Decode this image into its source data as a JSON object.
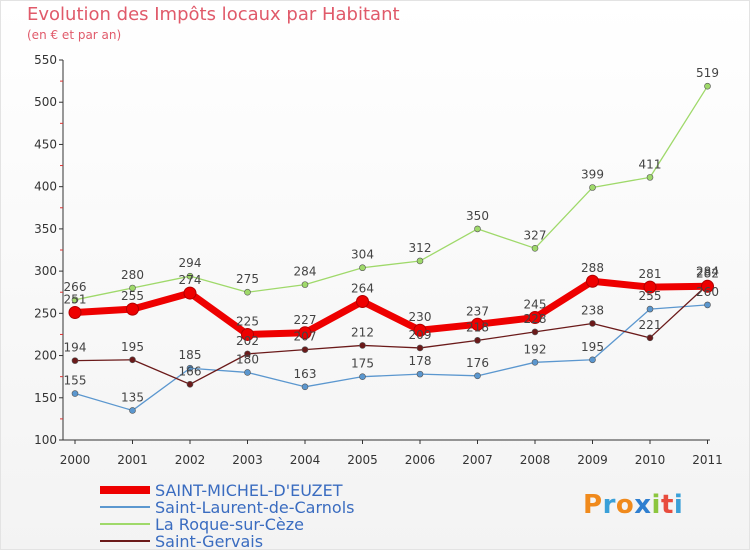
{
  "header": {
    "title": "Evolution des Impôts locaux par Habitant",
    "subtitle": "(en € et par an)"
  },
  "brand": {
    "letters": [
      "P",
      "r",
      "o",
      "x",
      "i",
      "t",
      "i"
    ],
    "colors": [
      "#f08a1c",
      "#3aa0d8",
      "#f08a1c",
      "#2f7fd0",
      "#8cc63e",
      "#e84c3d",
      "#3aa0d8"
    ]
  },
  "chart_data": {
    "type": "line",
    "title": "Evolution des Impôts locaux par Habitant",
    "subtitle": "(en € et par an)",
    "x": [
      "2000",
      "2001",
      "2002",
      "2003",
      "2004",
      "2005",
      "2006",
      "2007",
      "2008",
      "2009",
      "2010",
      "2011"
    ],
    "ylim": [
      100,
      550
    ],
    "yticks": [
      "100",
      "150",
      "200",
      "250",
      "300",
      "350",
      "400",
      "450",
      "500",
      "550"
    ],
    "grid": false,
    "legend_position": "bottom-left",
    "series": [
      {
        "name": "SAINT-MICHEL-D'EUZET",
        "color": "#ee0000",
        "values": [
          251,
          255,
          274,
          225,
          227,
          264,
          230,
          237,
          245,
          288,
          281,
          282
        ]
      },
      {
        "name": "Saint-Laurent-de-Carnols",
        "color": "#5b97cf",
        "values": [
          155,
          135,
          185,
          180,
          163,
          175,
          178,
          176,
          192,
          195,
          255,
          260
        ]
      },
      {
        "name": "La Roque-sur-Cèze",
        "color": "#9fd96a",
        "values": [
          266,
          280,
          294,
          275,
          284,
          304,
          312,
          350,
          327,
          399,
          411,
          519
        ]
      },
      {
        "name": "Saint-Gervais",
        "color": "#6b1a1a",
        "values": [
          194,
          195,
          166,
          202,
          207,
          212,
          209,
          218,
          228,
          238,
          221,
          284
        ]
      }
    ]
  }
}
